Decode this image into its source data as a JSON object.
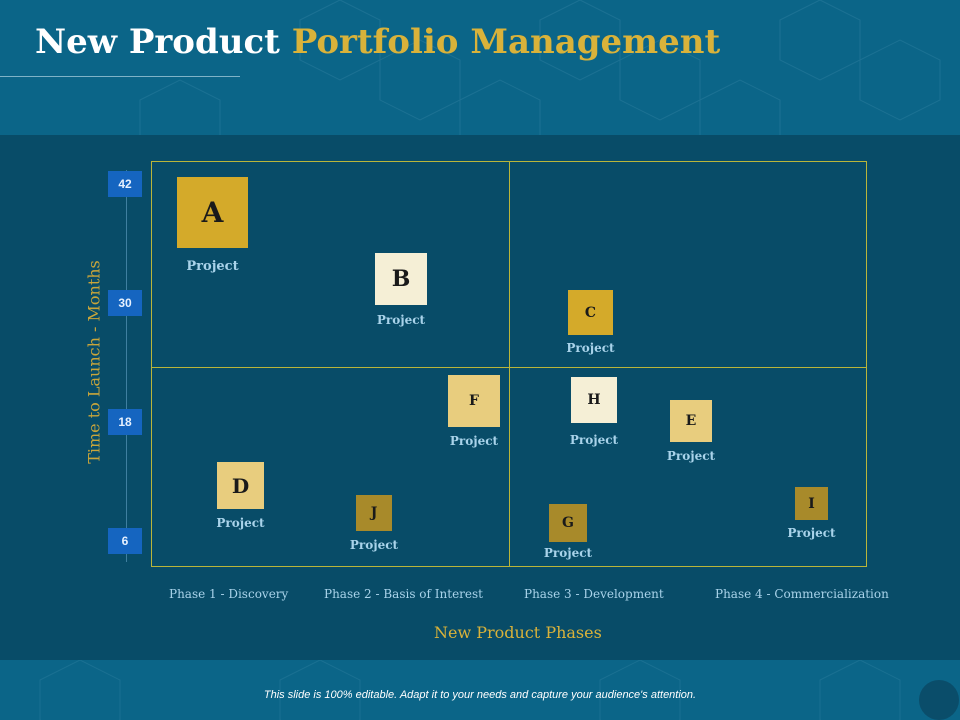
{
  "slide": {
    "title_part1": "New Product",
    "title_part2": "Portfolio Management",
    "footer_note": "This slide is 100% editable. Adapt it to your needs and capture your audience's attention."
  },
  "colors": {
    "background": "#084c68",
    "header": "#0b6588",
    "accent_gold": "#d9b23a",
    "grid_line": "#b9b53a",
    "tick_blue": "#1565c0",
    "caption": "#a9d3ea"
  },
  "axes": {
    "ylabel": "Time to Launch - Months",
    "xlabel": "New Product Phases",
    "yticks": [
      "42",
      "30",
      "18",
      "6"
    ],
    "phases": [
      "Phase 1 - Discovery",
      "Phase 2 - Basis of Interest",
      "Phase 3 - Development",
      "Phase 4 - Commercialization"
    ]
  },
  "projects": [
    {
      "letter": "A",
      "caption": "Project",
      "color": "#d4aa2a"
    },
    {
      "letter": "B",
      "caption": "Project",
      "color": "#f5efd6"
    },
    {
      "letter": "C",
      "caption": "Project",
      "color": "#d4aa2a"
    },
    {
      "letter": "D",
      "caption": "Project",
      "color": "#e8cd7e"
    },
    {
      "letter": "E",
      "caption": "Project",
      "color": "#e8cd7e"
    },
    {
      "letter": "F",
      "caption": "Project",
      "color": "#e8cd7e"
    },
    {
      "letter": "G",
      "caption": "Project",
      "color": "#a88a2a"
    },
    {
      "letter": "H",
      "caption": "Project",
      "color": "#f5efd6"
    },
    {
      "letter": "I",
      "caption": "Project",
      "color": "#a88a2a"
    },
    {
      "letter": "J",
      "caption": "Project",
      "color": "#a88a2a"
    }
  ]
}
